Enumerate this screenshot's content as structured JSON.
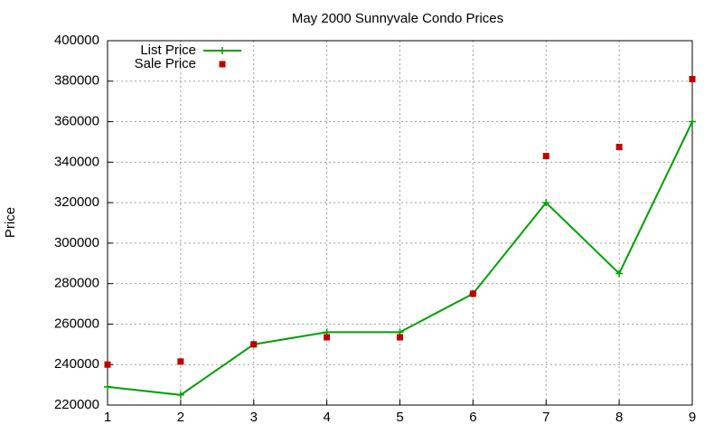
{
  "chart_data": {
    "type": "line",
    "title": "May 2000 Sunnyvale Condo Prices",
    "y_label": "Price",
    "x": [
      1,
      2,
      3,
      4,
      5,
      6,
      7,
      8,
      9
    ],
    "series": [
      {
        "name": "List Price",
        "color": "#00a000",
        "line": true,
        "marker": "plus",
        "values": [
          229000,
          225000,
          250000,
          256000,
          256000,
          275000,
          320000,
          285000,
          360000
        ]
      },
      {
        "name": "Sale Price",
        "color": "#c00000",
        "line": false,
        "marker": "square",
        "values": [
          240000,
          241500,
          250000,
          253500,
          253500,
          275000,
          343000,
          347500,
          381000
        ]
      }
    ],
    "xlim": [
      1,
      9
    ],
    "xticks": [
      1,
      2,
      3,
      4,
      5,
      6,
      7,
      8,
      9
    ],
    "ylim": [
      220000,
      400000
    ],
    "yticks": [
      220000,
      240000,
      260000,
      280000,
      300000,
      320000,
      340000,
      360000,
      380000,
      400000
    ],
    "grid": true,
    "legend": "top-left"
  }
}
